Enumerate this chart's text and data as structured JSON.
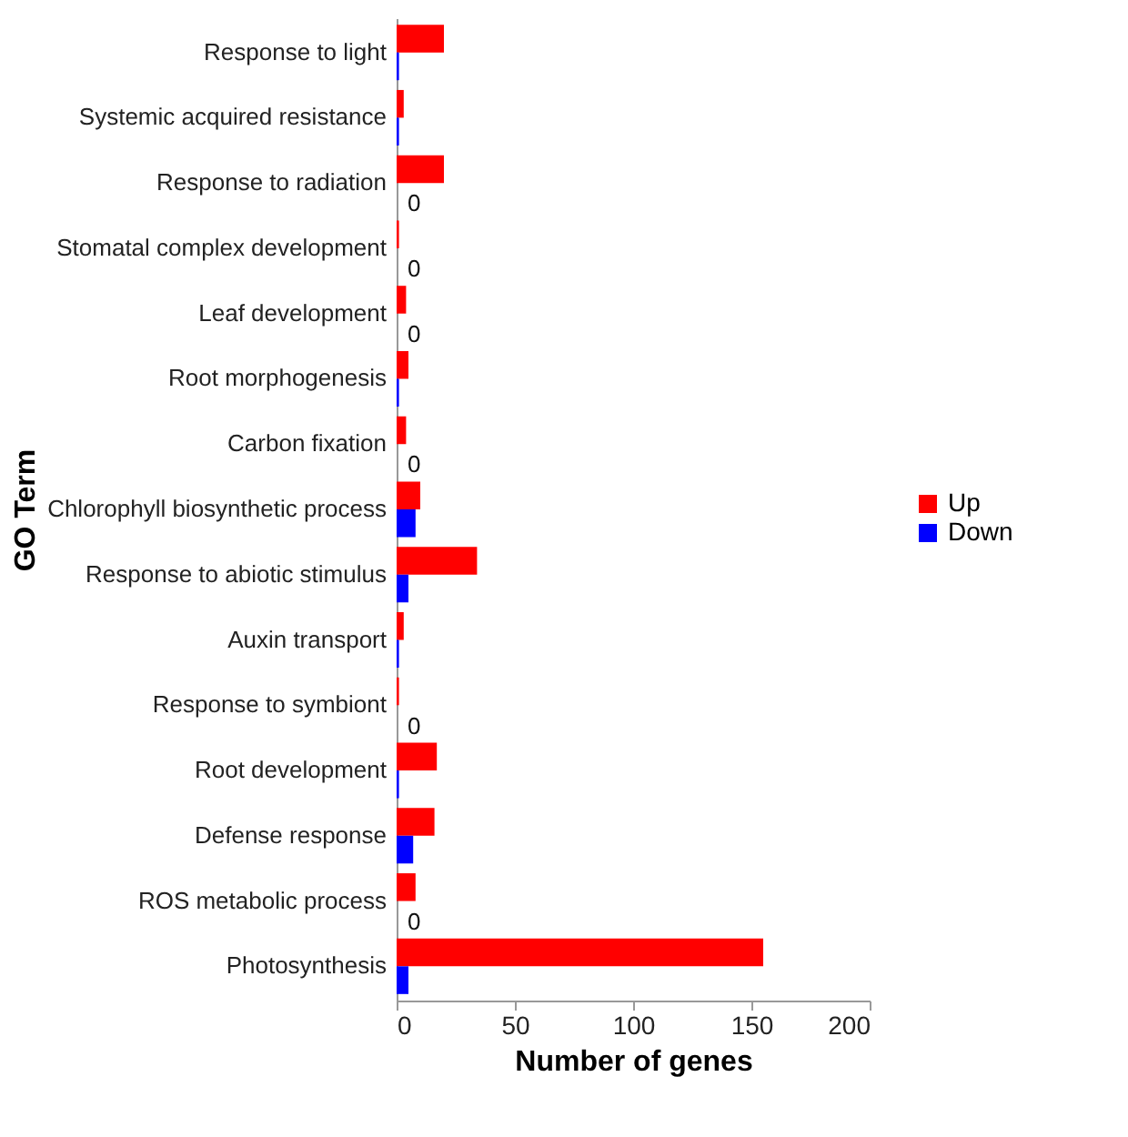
{
  "chart_data": {
    "type": "bar",
    "orientation": "horizontal",
    "xlabel": "Number of genes",
    "ylabel": "GO Term",
    "categories": [
      "Response to light",
      "Systemic acquired resistance",
      "Response to radiation",
      "Stomatal complex development",
      "Leaf development",
      "Root morphogenesis",
      "Carbon fixation",
      "Chlorophyll biosynthetic process",
      "Response to abiotic stimulus",
      "Auxin transport",
      "Response to symbiont",
      "Root development",
      "Defense response",
      "ROS metabolic process",
      "Photosynthesis"
    ],
    "series": [
      {
        "name": "Up",
        "color": "#ff0000",
        "values": [
          20,
          3,
          20,
          1,
          4,
          5,
          4,
          10,
          34,
          3,
          1,
          17,
          16,
          8,
          155
        ]
      },
      {
        "name": "Down",
        "color": "#0000ff",
        "values": [
          1,
          1,
          0,
          0,
          0,
          1,
          0,
          8,
          5,
          1,
          0,
          1,
          7,
          0,
          5
        ],
        "value_labels": [
          null,
          null,
          "0",
          "0",
          "0",
          null,
          "0",
          null,
          null,
          null,
          "0",
          null,
          null,
          "0",
          null
        ]
      }
    ],
    "xlim": [
      0,
      200
    ],
    "xticks": [
      0,
      50,
      100,
      150,
      200
    ],
    "grid": false,
    "legend": "right"
  }
}
